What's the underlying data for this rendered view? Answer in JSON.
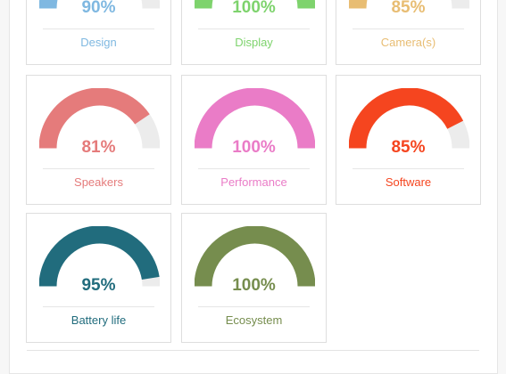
{
  "ratings": [
    {
      "label": "Design",
      "value": 90,
      "value_text": "90%",
      "color": "#7fb8e1"
    },
    {
      "label": "Display",
      "value": 100,
      "value_text": "100%",
      "color": "#7ed36d"
    },
    {
      "label": "Camera(s)",
      "value": 85,
      "value_text": "85%",
      "color": "#e8bd73"
    },
    {
      "label": "Speakers",
      "value": 81,
      "value_text": "81%",
      "color": "#e57b7b"
    },
    {
      "label": "Performance",
      "value": 100,
      "value_text": "100%",
      "color": "#ea7cc7"
    },
    {
      "label": "Software",
      "value": 85,
      "value_text": "85%",
      "color": "#f5451f"
    },
    {
      "label": "Battery life",
      "value": 95,
      "value_text": "95%",
      "color": "#216c7d"
    },
    {
      "label": "Ecosystem",
      "value": 100,
      "value_text": "100%",
      "color": "#768d4e"
    }
  ],
  "track_color": "#ececec"
}
